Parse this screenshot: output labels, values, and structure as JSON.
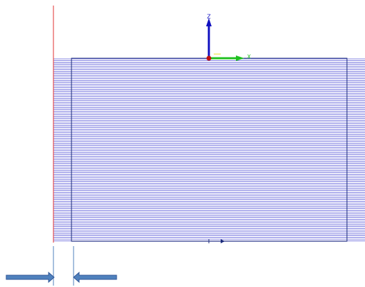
{
  "axis_labels": {
    "z": "Z",
    "x": "X"
  }
}
